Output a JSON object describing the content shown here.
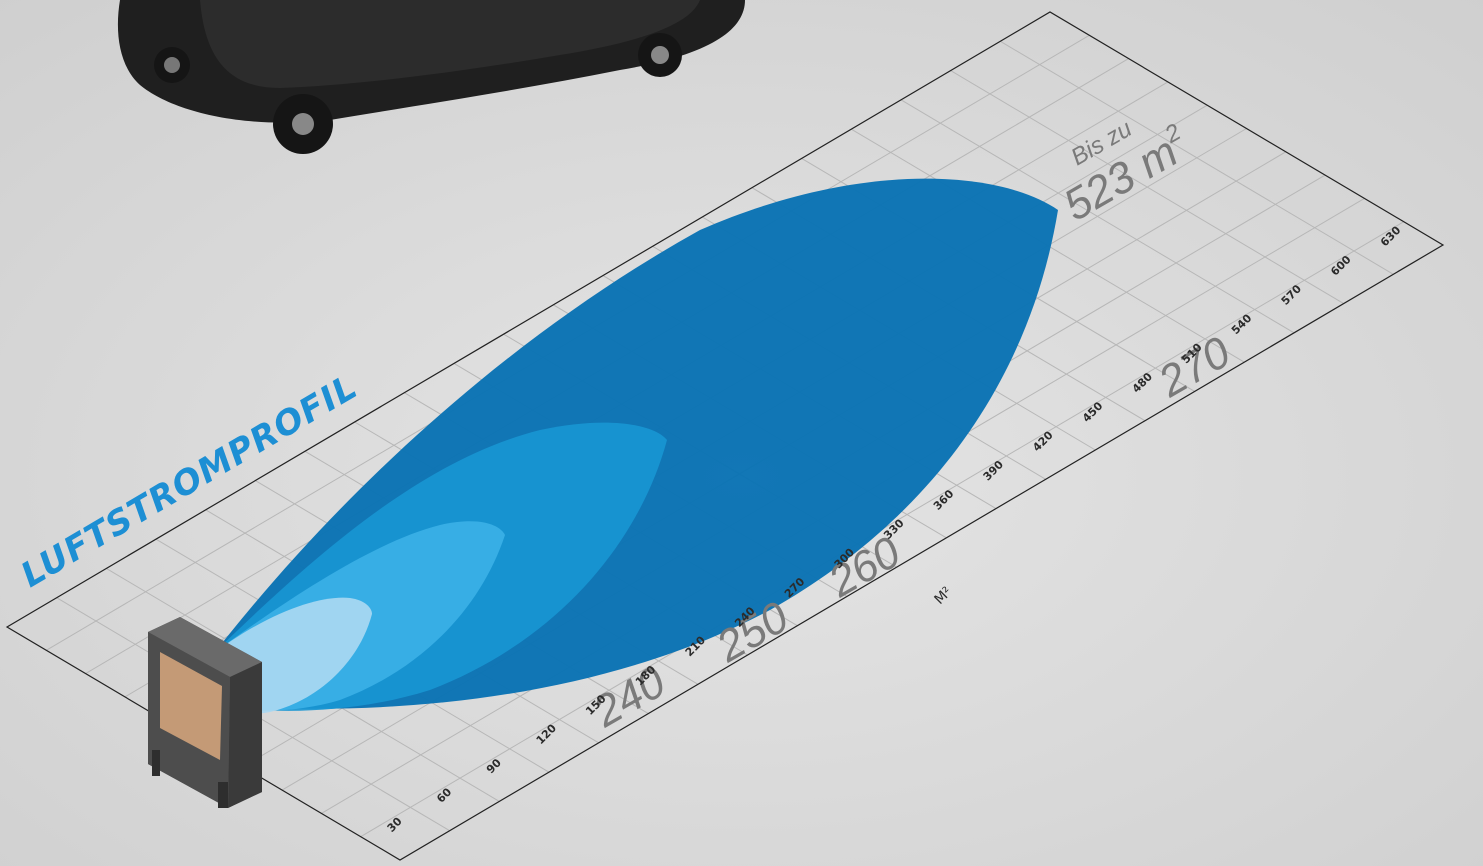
{
  "title": "LUFTSTROMPROFIL",
  "axis": {
    "unit": "M²",
    "ticks": [
      "30",
      "60",
      "90",
      "120",
      "150",
      "180",
      "210",
      "240",
      "270",
      "300",
      "330",
      "360",
      "390",
      "420",
      "450",
      "480",
      "510",
      "540",
      "570",
      "600",
      "630"
    ]
  },
  "levels": [
    {
      "label": "240",
      "color": "#a9d8f2"
    },
    {
      "label": "250",
      "color": "#3bb0e6"
    },
    {
      "label": "260",
      "color": "#1896d3"
    },
    {
      "label": "270",
      "color": "#0a73b4"
    }
  ],
  "callout": {
    "prefix": "Bis zu",
    "value": "523 m",
    "superscript": "2"
  }
}
